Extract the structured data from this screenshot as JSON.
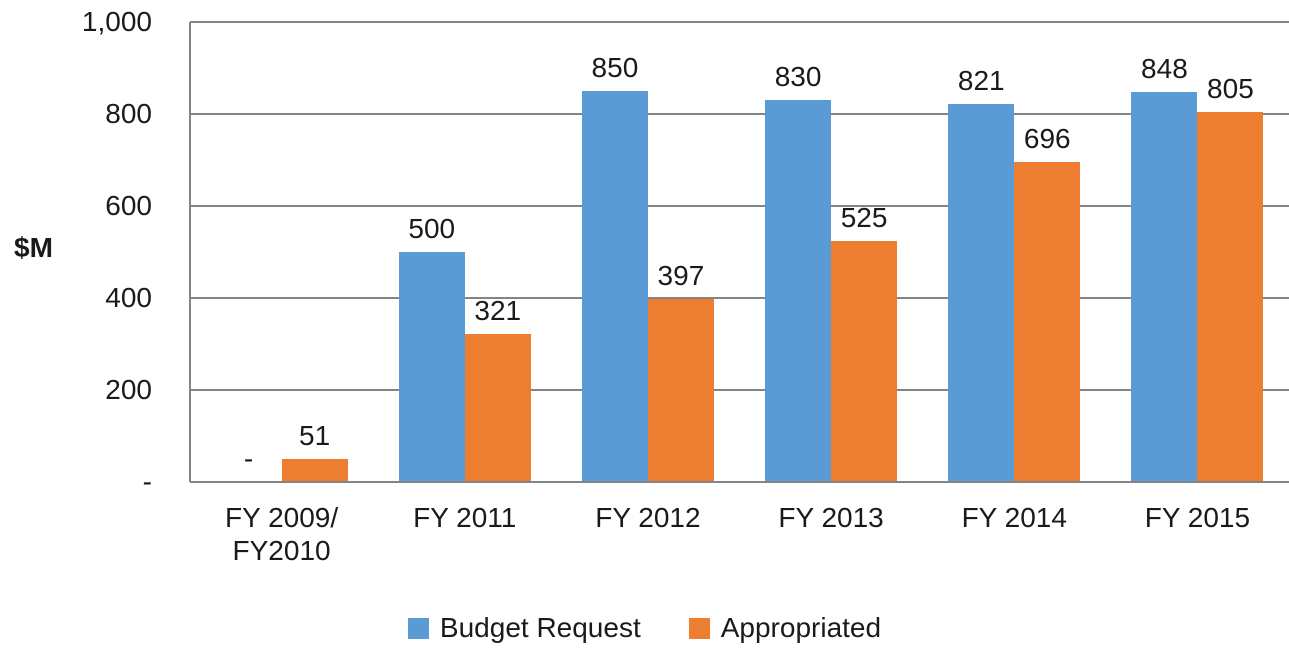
{
  "chart_data": {
    "type": "bar",
    "title": "",
    "ylabel": "$M",
    "xlabel": "",
    "ylim": [
      0,
      1000
    ],
    "grid": true,
    "legend_position": "bottom",
    "categories": [
      "FY 2009/\nFY2010",
      "FY 2011",
      "FY 2012",
      "FY 2013",
      "FY 2014",
      "FY 2015"
    ],
    "yticks": [
      {
        "value": 0,
        "label": "-"
      },
      {
        "value": 200,
        "label": "200"
      },
      {
        "value": 400,
        "label": "400"
      },
      {
        "value": 600,
        "label": "600"
      },
      {
        "value": 800,
        "label": "800"
      },
      {
        "value": 1000,
        "label": "1,000"
      }
    ],
    "series": [
      {
        "name": "Budget Request",
        "color": "#5B9BD5",
        "values": [
          null,
          500,
          850,
          830,
          821,
          848
        ],
        "labels": [
          "-",
          "500",
          "850",
          "830",
          "821",
          "848"
        ]
      },
      {
        "name": "Appropriated",
        "color": "#ED7D31",
        "values": [
          51,
          321,
          397,
          525,
          696,
          805
        ],
        "labels": [
          "51",
          "321",
          "397",
          "525",
          "696",
          "805"
        ]
      }
    ],
    "colors": {
      "gridline": "#848484",
      "axis_line": "#848484",
      "label_text": "#1a1a1a"
    }
  }
}
